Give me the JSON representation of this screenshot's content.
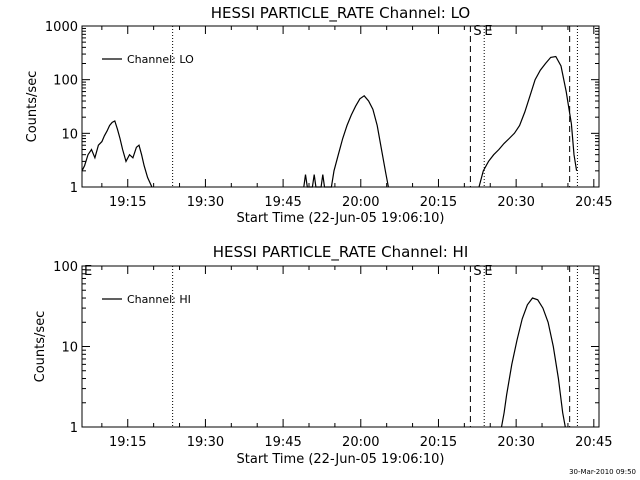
{
  "chart_data": [
    {
      "type": "line",
      "title": "HESSI PARTICLE_RATE Channel: LO",
      "xlabel": "Start Time (22-Jun-05 19:06:10)",
      "ylabel": "Counts/sec",
      "y_scale": "log",
      "ylim": [
        1,
        1000
      ],
      "xlim": [
        "19:06:10",
        "20:46:00"
      ],
      "grid": false,
      "legend_position": "top-left",
      "x_tick_labels": [
        "19:15",
        "19:30",
        "19:45",
        "20:00",
        "20:15",
        "20:30",
        "20:45"
      ],
      "y_tick_labels": [
        "1",
        "10",
        "100",
        "1000"
      ],
      "series": [
        {
          "name": "Channel: LO",
          "x": [
            "19:06:10",
            "19:06:40",
            "19:07:20",
            "19:08:00",
            "19:08:40",
            "19:09:20",
            "19:10:00",
            "19:10:30",
            "19:11:00",
            "19:11:30",
            "19:12:00",
            "19:12:30",
            "19:13:00",
            "19:13:30",
            "19:14:00",
            "19:14:40",
            "19:15:20",
            "19:16:00",
            "19:16:40",
            "19:17:10",
            "19:17:40",
            "19:18:10",
            "19:18:50",
            "19:19:40"
          ],
          "y": [
            2,
            2.5,
            4,
            5,
            3.5,
            6,
            7,
            9,
            11,
            14,
            16,
            17,
            12,
            8,
            5,
            3,
            4,
            3.5,
            5.5,
            6,
            4,
            2.5,
            1.5,
            1
          ],
          "color": "#000000"
        },
        {
          "name": "Channel: LO",
          "x": [
            "19:49:00",
            "19:49:20",
            "19:49:40",
            "19:50:40",
            "19:51:00",
            "19:51:20",
            "19:52:20",
            "19:52:40",
            "19:53:00",
            "19:54:20",
            "19:54:50",
            "19:55:40",
            "19:56:30",
            "19:57:20",
            "19:58:10",
            "19:59:00",
            "19:59:50",
            "20:00:40",
            "20:01:30",
            "20:02:20",
            "20:03:10",
            "20:04:00",
            "20:04:50",
            "20:05:20"
          ],
          "y": [
            1,
            1.7,
            1,
            1,
            1.7,
            1,
            1,
            1.7,
            1,
            1,
            2,
            4,
            8,
            14,
            22,
            32,
            44,
            50,
            40,
            28,
            14,
            5,
            1.8,
            1
          ],
          "color": "#000000"
        },
        {
          "name": "Channel: LO",
          "x": [
            "20:22:50",
            "20:23:40",
            "20:24:40",
            "20:25:40",
            "20:26:40",
            "20:27:40",
            "20:28:40",
            "20:29:40",
            "20:30:40",
            "20:31:40",
            "20:32:40",
            "20:33:40",
            "20:34:40",
            "20:35:40",
            "20:36:40",
            "20:37:40",
            "20:38:40",
            "20:39:40",
            "20:40:40",
            "20:41:10",
            "20:41:40"
          ],
          "y": [
            1,
            2,
            3,
            4,
            5,
            6.5,
            8,
            10,
            14,
            25,
            50,
            100,
            150,
            200,
            260,
            270,
            180,
            60,
            15,
            4,
            2
          ],
          "color": "#000000"
        }
      ],
      "annotations": [
        {
          "label": "S",
          "x": "20:21:10",
          "line_style": "dashed"
        },
        {
          "label": "E",
          "x": "20:40:20",
          "line_style": "dashed"
        }
      ],
      "reference_lines": [
        {
          "x": "19:23:40",
          "line_style": "dotted"
        },
        {
          "x": "20:23:50",
          "line_style": "dotted"
        },
        {
          "x": "20:41:50",
          "line_style": "dotted"
        }
      ]
    },
    {
      "type": "line",
      "title": "HESSI PARTICLE_RATE Channel: HI",
      "xlabel": "Start Time (22-Jun-05 19:06:10)",
      "ylabel": "Counts/sec",
      "y_scale": "log",
      "ylim": [
        1,
        100
      ],
      "xlim": [
        "19:06:10",
        "20:46:00"
      ],
      "grid": false,
      "legend_position": "top-left",
      "x_tick_labels": [
        "19:15",
        "19:30",
        "19:45",
        "20:00",
        "20:15",
        "20:30",
        "20:45"
      ],
      "y_tick_labels": [
        "1",
        "10",
        "100"
      ],
      "series": [
        {
          "name": "Channel: HI",
          "x": [
            "20:27:10",
            "20:27:40",
            "20:28:10",
            "20:29:10",
            "20:30:10",
            "20:31:10",
            "20:32:10",
            "20:33:10",
            "20:34:10",
            "20:35:10",
            "20:36:10",
            "20:37:10",
            "20:38:10",
            "20:39:00",
            "20:39:30"
          ],
          "y": [
            1,
            1.5,
            2.5,
            6,
            12,
            22,
            33,
            40,
            38,
            30,
            20,
            10,
            4,
            1.5,
            1
          ],
          "color": "#000000"
        }
      ],
      "annotations": [
        {
          "label": "S",
          "x": "20:21:10",
          "line_style": "dashed"
        },
        {
          "label": "E",
          "x": "20:40:20",
          "line_style": "dashed"
        }
      ],
      "reference_lines": [
        {
          "x": "19:23:40",
          "line_style": "dotted"
        },
        {
          "x": "20:23:50",
          "line_style": "dotted"
        },
        {
          "x": "20:41:50",
          "line_style": "dotted"
        }
      ],
      "orphan_label": "E"
    }
  ],
  "footer": {
    "timestamp": "30-Mar-2010 09:50"
  }
}
